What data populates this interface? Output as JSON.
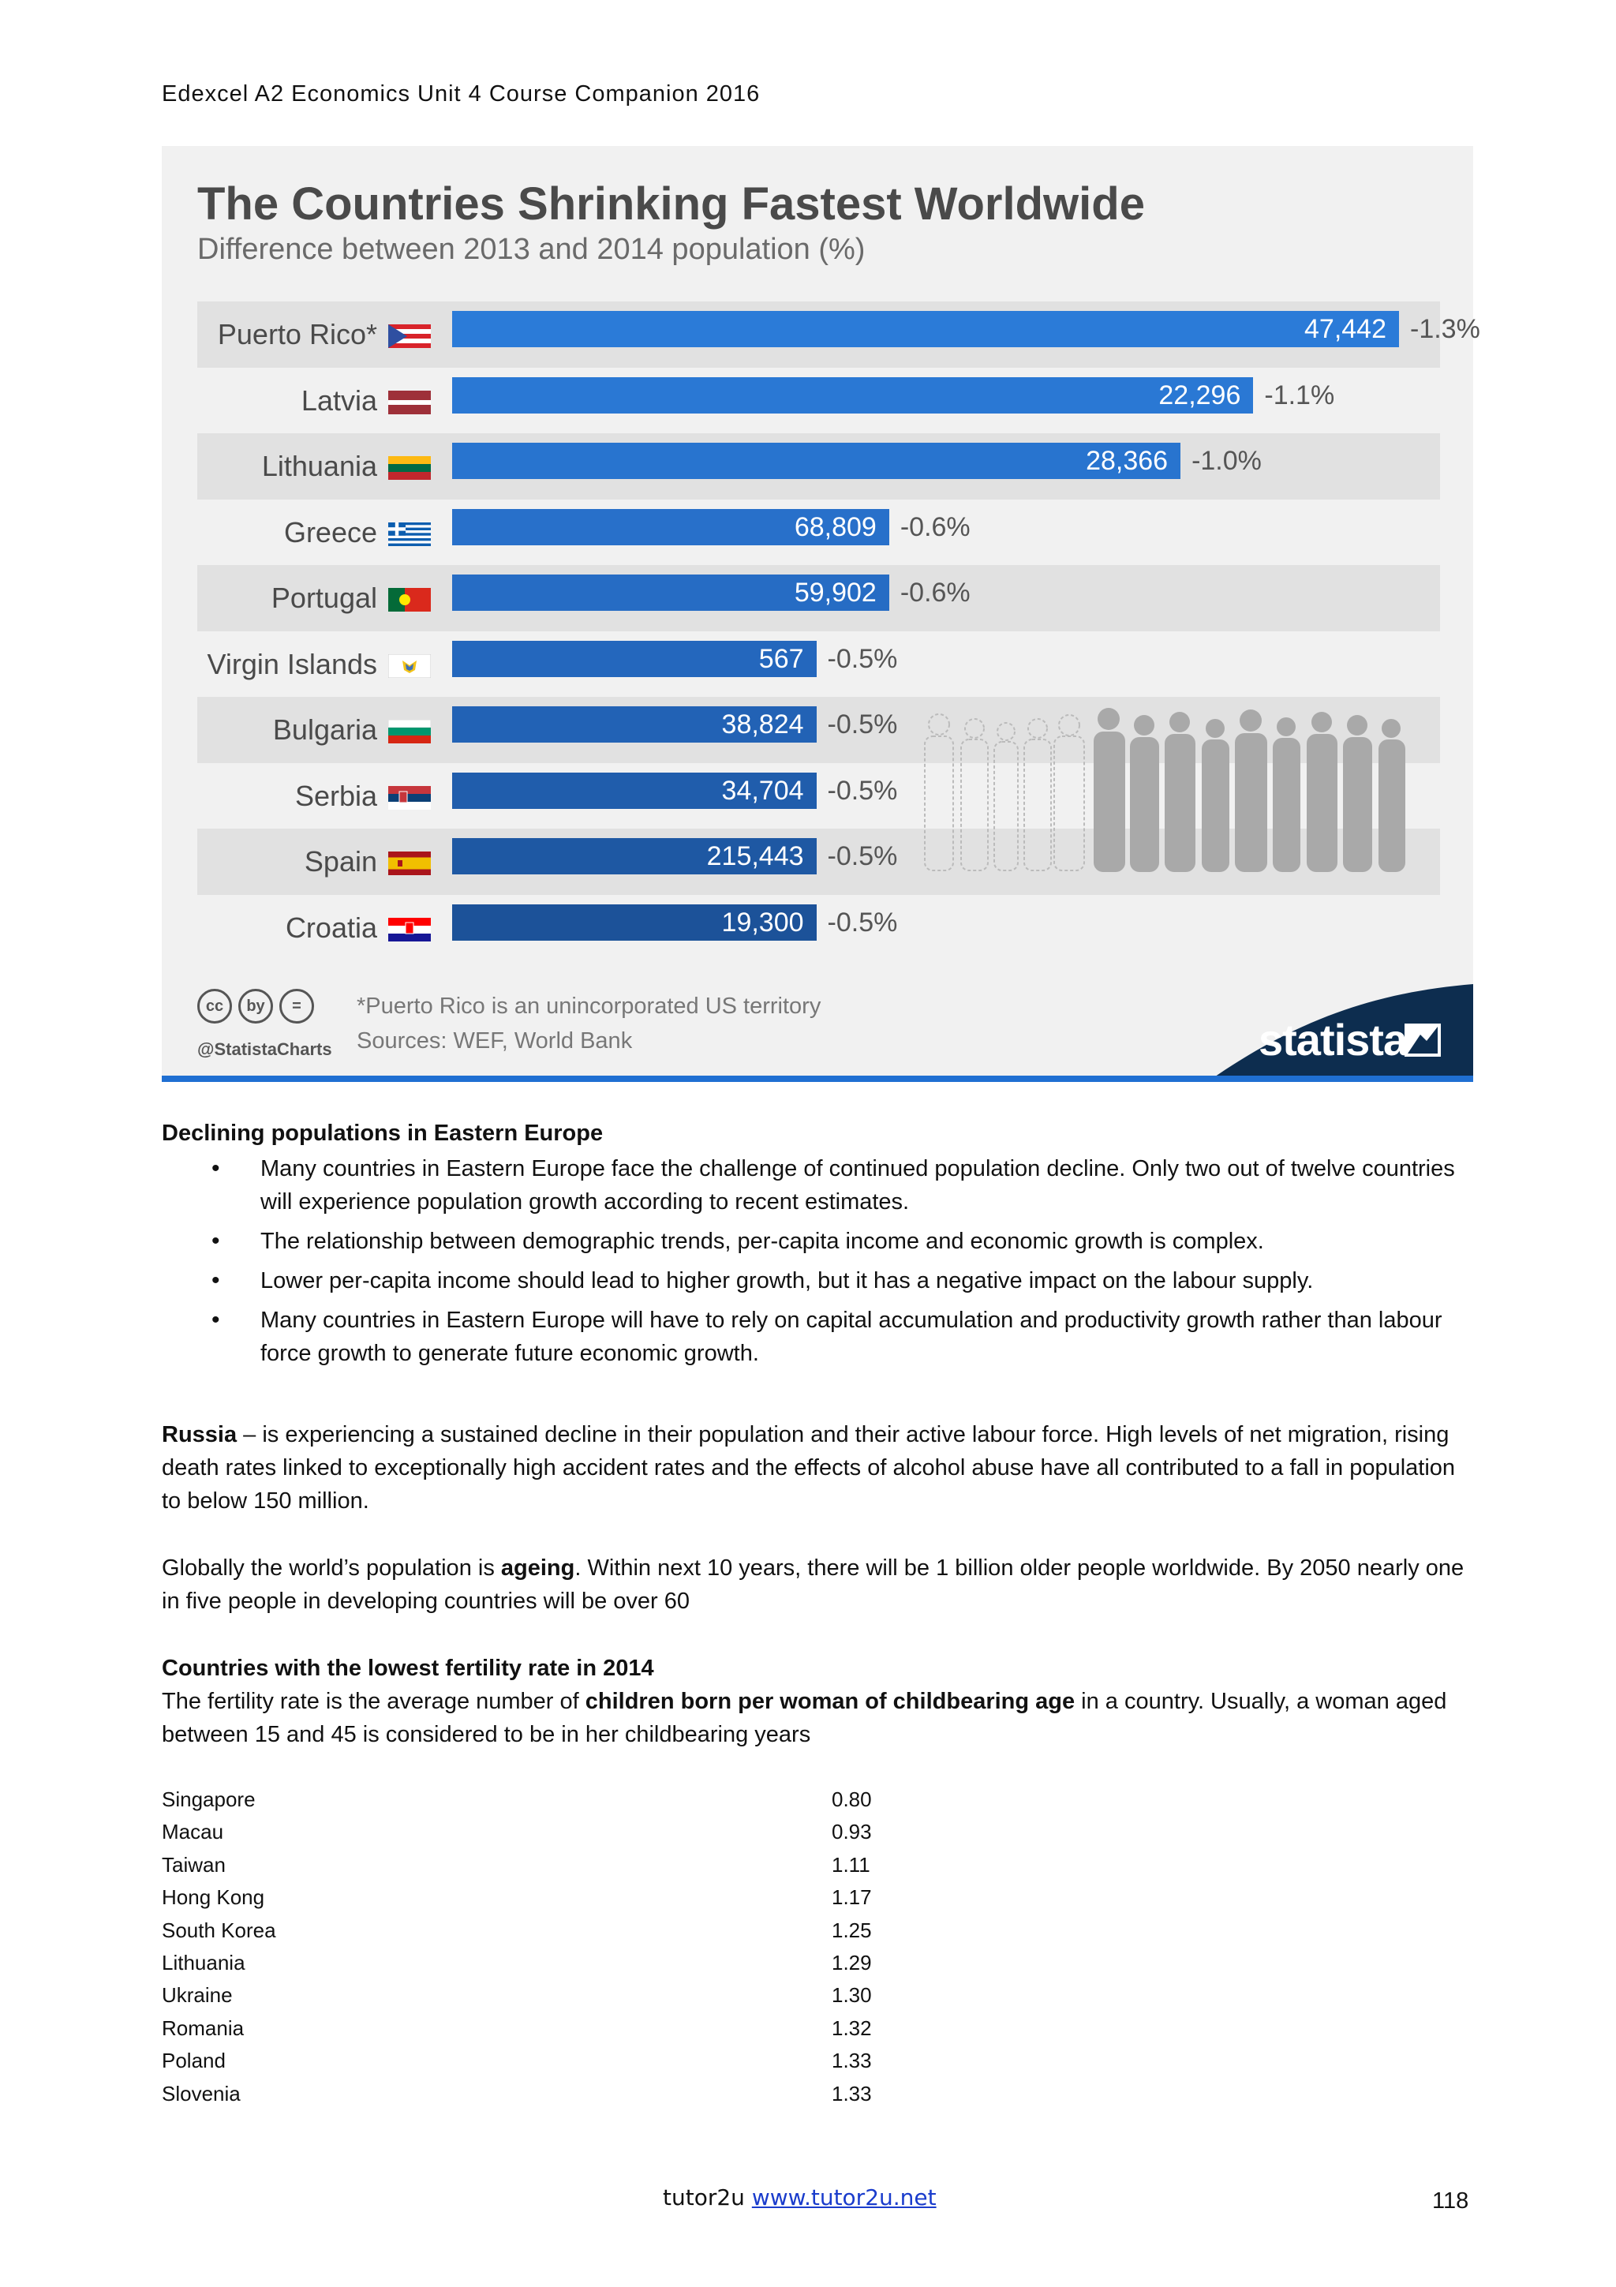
{
  "header": {
    "course_title": "Edexcel A2 Economics Unit 4 Course Companion 2016"
  },
  "infographic": {
    "title": "The Countries Shrinking Fastest Worldwide",
    "subtitle": "Difference between 2013 and 2014 population (%)",
    "footnote": "*Puerto Rico is an unincorporated US territory",
    "sources": "Sources: WEF, World Bank",
    "handle": "@StatistaCharts",
    "brand": "statista",
    "cc_icons": [
      "cc",
      "by",
      "="
    ],
    "colors": {
      "bar_light": "#2c7ad6",
      "bar_dark": "#1d4f95",
      "stripe": "#e1e1e1",
      "brand": "#0d2d4f"
    }
  },
  "chart_data": {
    "type": "bar",
    "title": "The Countries Shrinking Fastest Worldwide",
    "subtitle": "Difference between 2013 and 2014 population (%)",
    "categories": [
      "Puerto Rico*",
      "Latvia",
      "Lithuania",
      "Greece",
      "Portugal",
      "Virgin Islands",
      "Bulgaria",
      "Serbia",
      "Spain",
      "Croatia"
    ],
    "values": [
      -1.3,
      -1.1,
      -1.0,
      -0.6,
      -0.6,
      -0.5,
      -0.5,
      -0.5,
      -0.5,
      -0.5
    ],
    "bar_labels": [
      "47,442",
      "22,296",
      "28,366",
      "68,809",
      "59,902",
      "567",
      "38,824",
      "34,704",
      "215,443",
      "19,300"
    ],
    "value_labels": [
      "-1.3%",
      "-1.1%",
      "-1.0%",
      "-0.6%",
      "-0.6%",
      "-0.5%",
      "-0.5%",
      "-0.5%",
      "-0.5%",
      "-0.5%"
    ],
    "orientation": "horizontal",
    "xlim": [
      0,
      -1.3
    ],
    "grid": false
  },
  "section1": {
    "heading": "Declining populations in Eastern Europe",
    "bullets": [
      "Many countries in Eastern Europe face the challenge of continued population decline. Only two out of twelve countries will experience population growth according to recent estimates.",
      "The relationship between demographic trends, per-capita income and economic growth is complex.",
      "Lower per-capita income should lead to higher growth, but it has a negative impact on the labour supply.",
      "Many countries in Eastern Europe will have to rely on capital accumulation and productivity growth rather than labour force growth to generate future economic growth."
    ]
  },
  "russia": {
    "bold": "Russia",
    "text": " – is experiencing a sustained decline in their population and their active labour force. High levels of net migration, rising death rates linked to exceptionally high accident rates and the effects of alcohol abuse have all contributed to a fall in population to below 150 million."
  },
  "ageing": {
    "before": "Globally the world’s population is ",
    "bold": "ageing",
    "after": ". Within next 10 years, there will be 1 billion older people worldwide. By 2050 nearly one in five people in developing countries will be over 60"
  },
  "fertility": {
    "heading": "Countries with the lowest fertility rate in 2014",
    "intro_before": "The fertility rate is the average number of ",
    "intro_bold": "children born per woman of childbearing age",
    "intro_after": " in a country. Usually, a woman aged between 15 and 45 is considered to be in her childbearing years",
    "rows": [
      {
        "country": "Singapore",
        "rate": "0.80"
      },
      {
        "country": "Macau",
        "rate": "0.93"
      },
      {
        "country": "Taiwan",
        "rate": "1.11"
      },
      {
        "country": "Hong Kong",
        "rate": "1.17"
      },
      {
        "country": "South Korea",
        "rate": "1.25"
      },
      {
        "country": "Lithuania",
        "rate": "1.29"
      },
      {
        "country": "Ukraine",
        "rate": "1.30"
      },
      {
        "country": "Romania",
        "rate": "1.32"
      },
      {
        "country": "Poland",
        "rate": "1.33"
      },
      {
        "country": "Slovenia",
        "rate": "1.33"
      }
    ]
  },
  "footer": {
    "brand": "tutor2u",
    "link": "www.tutor2u.net",
    "page_number": "118"
  }
}
